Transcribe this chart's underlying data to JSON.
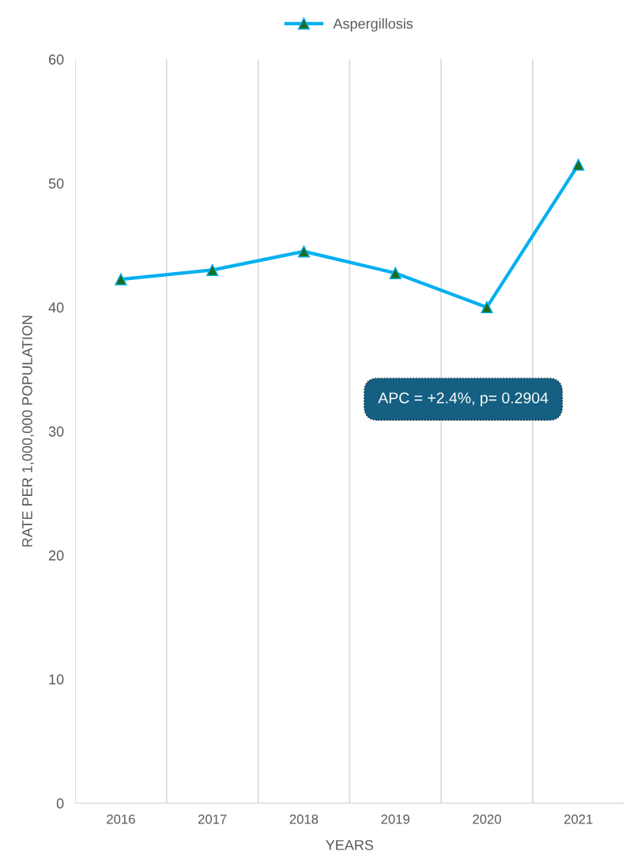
{
  "chart_data": {
    "type": "line",
    "xlabel": "YEARS",
    "ylabel": "RATE PER 1,000,000 POPULATION",
    "categories": [
      "2016",
      "2017",
      "2018",
      "2019",
      "2020",
      "2021"
    ],
    "series": [
      {
        "name": "Aspergillosis",
        "color": "#00b0f0",
        "values": [
          42.25,
          43.0,
          44.5,
          42.75,
          40.0,
          51.5
        ]
      }
    ],
    "ylim": [
      0,
      60
    ],
    "yticks": [
      0,
      10,
      20,
      30,
      40,
      50,
      60
    ],
    "grid": "x",
    "legend": "top",
    "marker": "triangle",
    "line_style": "solid",
    "annotations": [
      "APC = +2.4%, p= 0.2904"
    ]
  }
}
